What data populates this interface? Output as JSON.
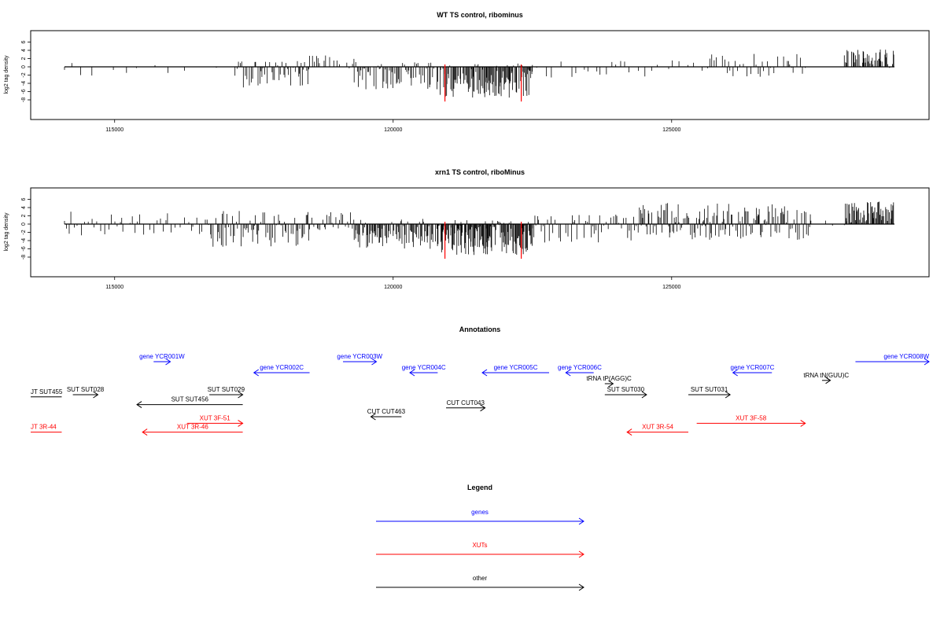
{
  "chart_data": [
    {
      "type": "bar",
      "title": "WT TS control, ribominus",
      "xlabel": "",
      "ylabel": "log2 tag density",
      "xlim": [
        113300,
        129200
      ],
      "ylim": [
        -9,
        6
      ],
      "x_ticks": [
        115000,
        120000,
        125000
      ],
      "y_ticks": [
        6,
        4,
        2,
        0,
        -2,
        -4,
        -6,
        -8
      ],
      "baseline": {
        "from": 114100,
        "to": 129000
      },
      "highlight_color": "#ff0000",
      "highlighted_bars": [
        {
          "x": 120930,
          "y": -8.4
        },
        {
          "x": 122300,
          "y": -8.4
        }
      ],
      "regions": [
        {
          "from": 114100,
          "to": 117200,
          "sparse": true,
          "pos_max": 1.2,
          "neg_max": 2.5,
          "density": 0.004,
          "seed": 11
        },
        {
          "from": 117200,
          "to": 118500,
          "pos_max": 1.5,
          "neg_max": 5.0,
          "density": 0.035,
          "seed": 12
        },
        {
          "from": 118500,
          "to": 119300,
          "pos_max": 3.0,
          "neg_max": 0.6,
          "density": 0.02,
          "seed": 13
        },
        {
          "from": 119300,
          "to": 120800,
          "pos_max": 1.2,
          "neg_max": 5.5,
          "density": 0.045,
          "seed": 14
        },
        {
          "from": 120800,
          "to": 122500,
          "pos_max": 0.8,
          "neg_max": 7.5,
          "density": 0.07,
          "seed": 15
        },
        {
          "from": 122500,
          "to": 125600,
          "sparse": true,
          "pos_max": 1.6,
          "neg_max": 2.8,
          "density": 0.008,
          "seed": 16
        },
        {
          "from": 125600,
          "to": 127400,
          "pos_max": 3.2,
          "neg_max": 2.5,
          "density": 0.02,
          "seed": 17
        },
        {
          "from": 127400,
          "to": 128100,
          "sparse": true,
          "pos_max": 0.4,
          "neg_max": 0.3,
          "density": 0.002,
          "seed": 18
        },
        {
          "from": 128100,
          "to": 129000,
          "pos_max": 4.2,
          "neg_max": 0.3,
          "density": 0.06,
          "seed": 19
        }
      ]
    },
    {
      "type": "bar",
      "title": "xrn1 TS control, riboMinus",
      "xlabel": "",
      "ylabel": "log2 tag density",
      "xlim": [
        113300,
        129200
      ],
      "ylim": [
        -9,
        6
      ],
      "x_ticks": [
        115000,
        120000,
        125000
      ],
      "y_ticks": [
        6,
        4,
        2,
        0,
        -2,
        -4,
        -6,
        -8
      ],
      "baseline": {
        "from": 114100,
        "to": 129000
      },
      "highlight_color": "#ff0000",
      "highlighted_bars": [
        {
          "x": 120930,
          "y": -8.4
        },
        {
          "x": 122300,
          "y": -8.4
        }
      ],
      "regions": [
        {
          "from": 114100,
          "to": 116700,
          "pos_max": 3.0,
          "neg_max": 2.8,
          "density": 0.02,
          "seed": 21
        },
        {
          "from": 116700,
          "to": 118500,
          "pos_max": 3.2,
          "neg_max": 5.5,
          "density": 0.04,
          "seed": 22
        },
        {
          "from": 118500,
          "to": 119300,
          "pos_max": 3.0,
          "neg_max": 1.5,
          "density": 0.03,
          "seed": 23
        },
        {
          "from": 119300,
          "to": 120800,
          "pos_max": 1.5,
          "neg_max": 6.0,
          "density": 0.06,
          "seed": 24
        },
        {
          "from": 120800,
          "to": 122500,
          "pos_max": 1.0,
          "neg_max": 7.5,
          "density": 0.09,
          "seed": 25
        },
        {
          "from": 122500,
          "to": 124400,
          "pos_max": 2.4,
          "neg_max": 4.5,
          "density": 0.03,
          "seed": 26
        },
        {
          "from": 124400,
          "to": 127500,
          "pos_max": 5.2,
          "neg_max": 3.8,
          "density": 0.05,
          "seed": 27
        },
        {
          "from": 127500,
          "to": 128100,
          "sparse": true,
          "pos_max": 1.0,
          "neg_max": 0.8,
          "density": 0.005,
          "seed": 28
        },
        {
          "from": 128100,
          "to": 129000,
          "pos_max": 5.5,
          "neg_max": 0.4,
          "density": 0.08,
          "seed": 29
        }
      ]
    },
    {
      "type": "annotation-track",
      "title": "Annotations",
      "xlim": [
        113300,
        129200
      ],
      "features": [
        {
          "label": "gene YCR001W",
          "category": "genes",
          "start": 115700,
          "end": 116000,
          "dir": "+",
          "row": 1
        },
        {
          "label": "gene YCR002C",
          "category": "genes",
          "start": 117500,
          "end": 118500,
          "dir": "-",
          "row": 2
        },
        {
          "label": "gene YCR003W",
          "category": "genes",
          "start": 119100,
          "end": 119700,
          "dir": "+",
          "row": 1
        },
        {
          "label": "gene YCR004C",
          "category": "genes",
          "start": 120300,
          "end": 120800,
          "dir": "-",
          "row": 2
        },
        {
          "label": "gene YCR005C",
          "category": "genes",
          "start": 121600,
          "end": 122800,
          "dir": "-",
          "row": 2
        },
        {
          "label": "gene YCR006C",
          "category": "genes",
          "start": 123100,
          "end": 123600,
          "dir": "-",
          "row": 2
        },
        {
          "label": "gene YCR007C",
          "category": "genes",
          "start": 126100,
          "end": 126800,
          "dir": "-",
          "row": 2
        },
        {
          "label": "gene YCR008W",
          "category": "genes",
          "start": 128300,
          "end": 130000,
          "dir": "+",
          "row": 1
        },
        {
          "label": "tRNA tP(AGG)C",
          "category": "other",
          "start": 123800,
          "end": 123950,
          "dir": "+",
          "row": 3
        },
        {
          "label": "tRNA tN(GUU)C",
          "category": "other",
          "start": 127700,
          "end": 127850,
          "dir": "+",
          "row": 2.7
        },
        {
          "label": "JT SUT455",
          "category": "other",
          "start": 113300,
          "end": 114050,
          "dir": "none",
          "row": 4.2
        },
        {
          "label": "SUT SUT028",
          "category": "other",
          "start": 114250,
          "end": 114700,
          "dir": "+",
          "row": 4
        },
        {
          "label": "SUT SUT029",
          "category": "other",
          "start": 116700,
          "end": 117300,
          "dir": "+",
          "row": 4
        },
        {
          "label": "SUT SUT456",
          "category": "other",
          "start": 115400,
          "end": 117300,
          "dir": "-",
          "row": 4.9
        },
        {
          "label": "SUT SUT030",
          "category": "other",
          "start": 123800,
          "end": 124550,
          "dir": "+",
          "row": 4
        },
        {
          "label": "SUT SUT031",
          "category": "other",
          "start": 125300,
          "end": 126050,
          "dir": "+",
          "row": 4
        },
        {
          "label": "CUT CUT463",
          "category": "other",
          "start": 119600,
          "end": 120150,
          "dir": "-",
          "row": 6
        },
        {
          "label": "CUT CUT043",
          "category": "other",
          "start": 120950,
          "end": 121650,
          "dir": "+",
          "row": 5.2
        },
        {
          "label": "XUT 3F-51",
          "category": "XUTs",
          "start": 116300,
          "end": 117300,
          "dir": "+",
          "row": 6.6
        },
        {
          "label": "JT 3R-44",
          "category": "XUTs",
          "start": 113300,
          "end": 114050,
          "dir": "none",
          "row": 7.4
        },
        {
          "label": "XUT 3R-46",
          "category": "XUTs",
          "start": 115500,
          "end": 117300,
          "dir": "-",
          "row": 7.4
        },
        {
          "label": "XUT 3R-54",
          "category": "XUTs",
          "start": 124200,
          "end": 125300,
          "dir": "-",
          "row": 7.4
        },
        {
          "label": "XUT 3F-58",
          "category": "XUTs",
          "start": 125450,
          "end": 127400,
          "dir": "+",
          "row": 6.6
        }
      ]
    },
    {
      "type": "legend",
      "title": "Legend",
      "entries": [
        {
          "label": "genes",
          "color": "#0000ff"
        },
        {
          "label": "XUTs",
          "color": "#ff0000"
        },
        {
          "label": "other",
          "color": "#000000"
        }
      ]
    }
  ],
  "colors": {
    "genes": "#0000ff",
    "XUTs": "#ff0000",
    "other": "#000000",
    "axis": "#000000"
  }
}
